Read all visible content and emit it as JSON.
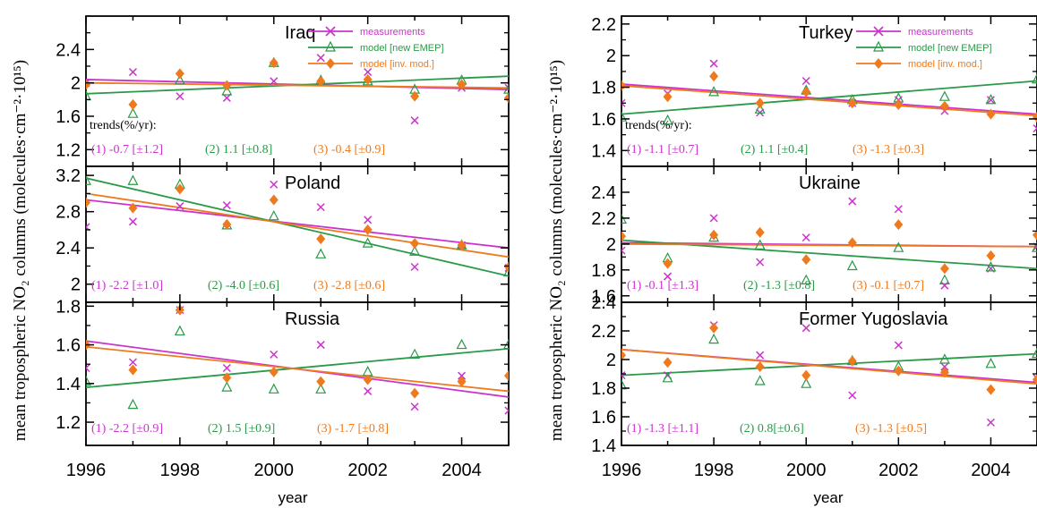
{
  "colors": {
    "measurements": "#cc33cc",
    "model_new": "#2a9a48",
    "model_inv": "#ef7a1e",
    "axis": "#000000"
  },
  "figure": {
    "xlabel": "year",
    "ylabel_left": "mean tropospheric NO₂ columns (molecules·cm⁻²·10¹⁵)",
    "ylabel_right": "mean tropospheric NO₂ columns (molecules·cm⁻²·10¹⁵)",
    "trends_title": "trends(%/yr):"
  },
  "chart_data": [
    {
      "type": "scatter",
      "title": "Iraq",
      "xlim": [
        1996,
        2005
      ],
      "ylim": [
        1.0,
        2.8
      ],
      "xticks": [
        1996,
        1998,
        2000,
        2002,
        2004
      ],
      "yticks": [
        1.2,
        1.6,
        2,
        2.4
      ],
      "ytick_labels": [
        "1.2",
        "1.6",
        "2",
        "2.4"
      ],
      "legend": [
        "measurements",
        "model [new EMEP]",
        "model [inv. mod.]"
      ],
      "years": [
        1996,
        1997,
        1998,
        1999,
        2000,
        2001,
        2002,
        2003,
        2004,
        2005
      ],
      "series": [
        {
          "name": "measurements",
          "values": [
            2.0,
            2.13,
            1.84,
            1.82,
            2.02,
            2.3,
            2.13,
            1.55,
            1.94,
            1.94
          ],
          "fit": [
            2.04,
            1.92
          ]
        },
        {
          "name": "model [new EMEP]",
          "values": [
            1.84,
            1.63,
            2.03,
            1.9,
            2.24,
            2.03,
            2.02,
            1.92,
            2.03,
            1.92
          ],
          "fit": [
            1.87,
            2.08
          ]
        },
        {
          "name": "model [inv. mod.]",
          "values": [
            1.98,
            1.74,
            2.11,
            1.97,
            2.24,
            2.02,
            2.04,
            1.84,
            1.98,
            1.82
          ],
          "fit": [
            2.0,
            1.94
          ]
        }
      ],
      "trends": [
        "(1) -0.7 [±1.2]",
        "(2) 1.1 [±0.8]",
        "(3) -0.4 [±0.9]"
      ]
    },
    {
      "type": "scatter",
      "title": "Poland",
      "xlim": [
        1996,
        2005
      ],
      "ylim": [
        1.8,
        3.3
      ],
      "xticks": [
        1996,
        1998,
        2000,
        2002,
        2004
      ],
      "yticks": [
        2.0,
        2.4,
        2.8,
        3.2
      ],
      "ytick_labels": [
        "2",
        "2.4",
        "2.8",
        "3.2"
      ],
      "years": [
        1996,
        1997,
        1998,
        1999,
        2000,
        2001,
        2002,
        2003,
        2004,
        2005
      ],
      "series": [
        {
          "name": "measurements",
          "values": [
            2.63,
            2.69,
            2.86,
            2.87,
            3.1,
            2.85,
            2.71,
            2.19,
            2.43,
            2.18
          ],
          "fit": [
            2.93,
            2.4
          ]
        },
        {
          "name": "model [new EMEP]",
          "values": [
            3.14,
            3.14,
            3.1,
            2.65,
            2.75,
            2.33,
            2.45,
            2.36,
            2.43,
            2.13
          ],
          "fit": [
            3.17,
            2.09
          ]
        },
        {
          "name": "model [inv. mod.]",
          "values": [
            2.9,
            2.84,
            3.05,
            2.66,
            2.93,
            2.5,
            2.6,
            2.45,
            2.43,
            2.19
          ],
          "fit": [
            3.0,
            2.3
          ]
        }
      ],
      "trends": [
        "(1) -2.2 [±1.0]",
        "(2) -4.0 [±0.6]",
        "(3) -2.8 [±0.6]"
      ]
    },
    {
      "type": "scatter",
      "title": "Russia",
      "xlim": [
        1996,
        2005
      ],
      "ylim": [
        1.08,
        1.82
      ],
      "xticks": [
        1996,
        1998,
        2000,
        2002,
        2004
      ],
      "yticks": [
        1.2,
        1.4,
        1.6,
        1.8
      ],
      "ytick_labels": [
        "1.2",
        "1.4",
        "1.6",
        "1.8"
      ],
      "years": [
        1996,
        1997,
        1998,
        1999,
        2000,
        2001,
        2002,
        2003,
        2004,
        2005
      ],
      "series": [
        {
          "name": "measurements",
          "values": [
            1.48,
            1.51,
            1.78,
            1.48,
            1.55,
            1.6,
            1.36,
            1.28,
            1.44,
            1.26
          ],
          "fit": [
            1.62,
            1.33
          ]
        },
        {
          "name": "model [new EMEP]",
          "values": [
            1.41,
            1.29,
            1.67,
            1.38,
            1.37,
            1.37,
            1.46,
            1.55,
            1.6,
            1.6
          ],
          "fit": [
            1.38,
            1.58
          ]
        },
        {
          "name": "model [inv. mod.]",
          "values": [
            1.6,
            1.47,
            1.78,
            1.43,
            1.46,
            1.41,
            1.42,
            1.35,
            1.41,
            1.44
          ],
          "fit": [
            1.59,
            1.36
          ]
        }
      ],
      "trends": [
        "(1) -2.2 [±0.9]",
        "(2) 1.5 [±0.9]",
        "(3) -1.7 [±0.8]"
      ]
    },
    {
      "type": "scatter",
      "title": "Turkey",
      "xlim": [
        1996,
        2005
      ],
      "ylim": [
        1.3,
        2.25
      ],
      "xticks": [
        1996,
        1998,
        2000,
        2002,
        2004
      ],
      "yticks": [
        1.4,
        1.6,
        1.8,
        2.0,
        2.2
      ],
      "ytick_labels": [
        "1.4",
        "1.6",
        "1.8",
        "2",
        "2.2"
      ],
      "legend": [
        "measurements",
        "model [new EMEP]",
        "model [inv. mod.]"
      ],
      "years": [
        1996,
        1997,
        1998,
        1999,
        2000,
        2001,
        2002,
        2003,
        2004,
        2005
      ],
      "series": [
        {
          "name": "measurements",
          "values": [
            1.7,
            1.76,
            1.95,
            1.64,
            1.84,
            1.7,
            1.72,
            1.65,
            1.72,
            1.54
          ],
          "fit": [
            1.82,
            1.63
          ]
        },
        {
          "name": "model [new EMEP]",
          "values": [
            1.61,
            1.59,
            1.77,
            1.66,
            1.78,
            1.72,
            1.73,
            1.74,
            1.72,
            1.85
          ],
          "fit": [
            1.63,
            1.84
          ]
        },
        {
          "name": "model [inv. mod.]",
          "values": [
            1.81,
            1.74,
            1.87,
            1.7,
            1.77,
            1.7,
            1.69,
            1.68,
            1.63,
            1.61
          ],
          "fit": [
            1.81,
            1.62
          ]
        }
      ],
      "trends": [
        "(1) -1.1 [±0.7]",
        "(2) 1.1 [±0.4]",
        "(3) -1.3 [±0.3]"
      ]
    },
    {
      "type": "scatter",
      "title": "Ukraine",
      "xlim": [
        1996,
        2005
      ],
      "ylim": [
        1.55,
        2.6
      ],
      "xticks": [
        1996,
        1998,
        2000,
        2002,
        2004
      ],
      "yticks": [
        1.6,
        1.8,
        2.0,
        2.2,
        2.4
      ],
      "ytick_labels": [
        "1.6",
        "1.8",
        "2",
        "2.2",
        "2.4"
      ],
      "years": [
        1996,
        1997,
        1998,
        1999,
        2000,
        2001,
        2002,
        2003,
        2004,
        2005
      ],
      "series": [
        {
          "name": "measurements",
          "values": [
            1.95,
            1.75,
            2.2,
            1.86,
            2.05,
            2.33,
            2.27,
            1.68,
            1.81,
            1.98
          ],
          "fit": [
            2.01,
            1.98
          ]
        },
        {
          "name": "model [new EMEP]",
          "values": [
            2.19,
            1.89,
            2.05,
            1.99,
            1.72,
            1.83,
            1.97,
            1.72,
            1.82,
            1.97
          ],
          "fit": [
            2.03,
            1.81
          ]
        },
        {
          "name": "model [inv. mod.]",
          "values": [
            2.06,
            1.85,
            2.07,
            2.09,
            1.88,
            2.01,
            2.15,
            1.81,
            1.91,
            2.07
          ],
          "fit": [
            2.0,
            1.98
          ]
        }
      ],
      "trends": [
        "(1) -0.1 [±1.3]",
        "(2) -1.3 [±0.8]",
        "(3) -0.1 [±0.7]"
      ]
    },
    {
      "type": "scatter",
      "title": "Former Yugoslavia",
      "xlim": [
        1996,
        2005
      ],
      "ylim": [
        1.4,
        2.4
      ],
      "xticks": [
        1996,
        1998,
        2000,
        2002,
        2004
      ],
      "yticks": [
        1.4,
        1.6,
        1.8,
        2.0,
        2.2,
        2.4
      ],
      "ytick_labels": [
        "1.4",
        "1.6",
        "1.8",
        "2",
        "2.2",
        "2.4"
      ],
      "years": [
        1996,
        1997,
        1998,
        1999,
        2000,
        2001,
        2002,
        2003,
        2004,
        2005
      ],
      "series": [
        {
          "name": "measurements",
          "values": [
            1.89,
            1.89,
            2.24,
            2.03,
            2.22,
            1.75,
            2.1,
            1.95,
            1.56,
            1.87
          ],
          "fit": [
            2.07,
            1.84
          ]
        },
        {
          "name": "model [new EMEP]",
          "values": [
            1.82,
            1.87,
            2.14,
            1.85,
            1.83,
            1.99,
            1.95,
            2.0,
            1.97,
            2.04
          ],
          "fit": [
            1.89,
            2.04
          ]
        },
        {
          "name": "model [inv. mod.]",
          "values": [
            2.03,
            1.98,
            2.22,
            1.95,
            1.89,
            1.99,
            1.92,
            1.91,
            1.79,
            1.86
          ],
          "fit": [
            2.07,
            1.83
          ]
        }
      ],
      "trends": [
        "(1) -1.3 [±1.1]",
        "(2) 0.8[±0.6]",
        "(3) -1.3 [±0.5]"
      ]
    }
  ]
}
